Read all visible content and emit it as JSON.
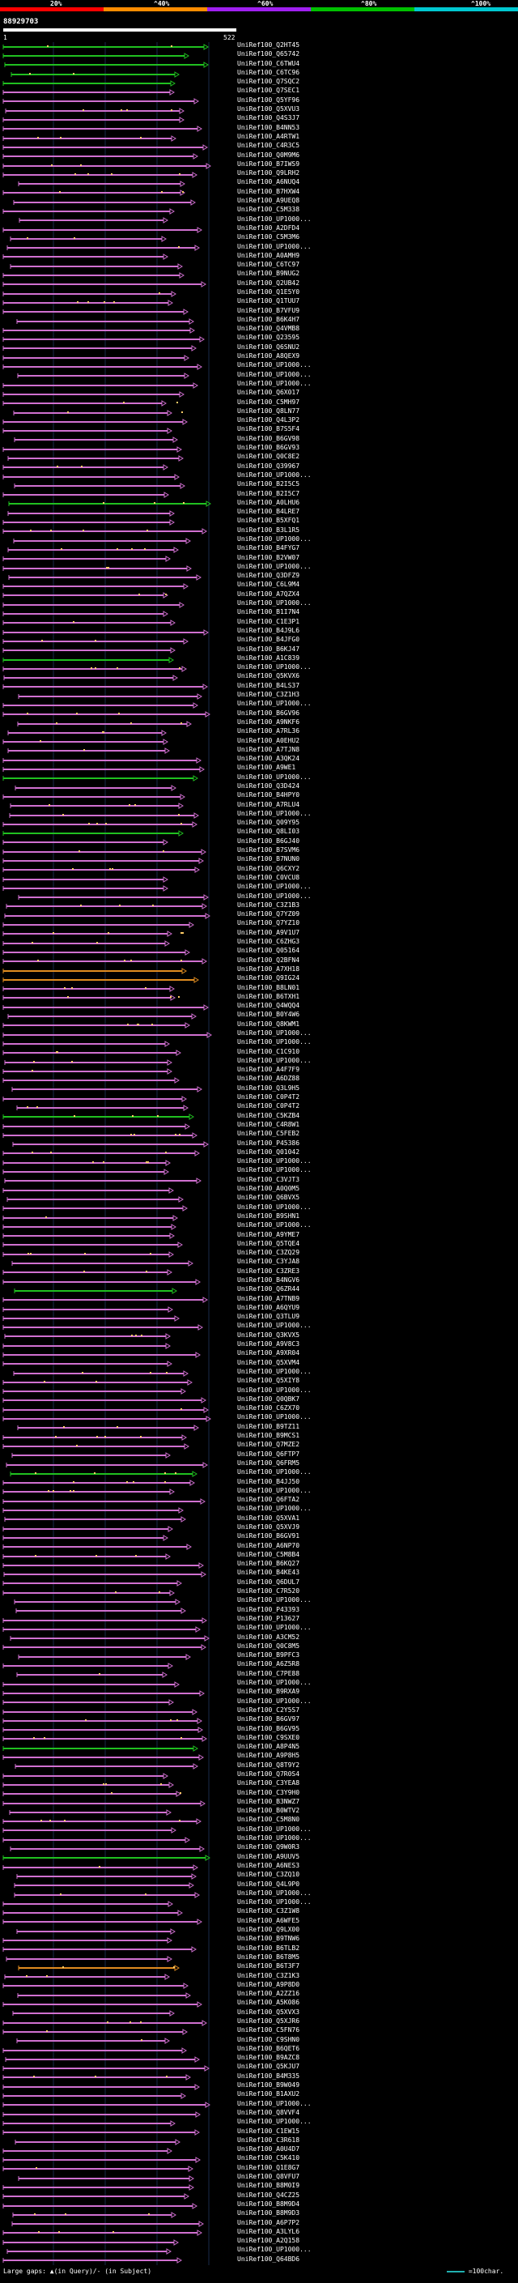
{
  "legend": {
    "labels": [
      "20%",
      "^40%",
      "^60%",
      "^80%",
      "^100%"
    ],
    "colors": [
      "#ff0000",
      "#ff8c00",
      "#a020f0",
      "#00c000",
      "#00c8d0"
    ]
  },
  "query": {
    "title": "88929703",
    "length_start": "1",
    "length_end": "522"
  },
  "colors": {
    "background": "#000000",
    "hit_magenta": "#d070d0",
    "hit_green": "#20c020",
    "hit_orange": "#e08c20",
    "gap_small": "#ffcc66"
  },
  "hits": [
    "UniRef100_Q2HT45",
    "UniRef100_Q65742",
    "UniRef100_C6TWU4",
    "UniRef100_C6TC96",
    "UniRef100_Q7SQC2",
    "UniRef100_Q7SEC1",
    "UniRef100_Q5YF96",
    "UniRef100_Q5XVU3",
    "UniRef100_Q4S3J7",
    "UniRef100_B4NN53",
    "UniRef100_A4RTW1",
    "UniRef100_C4R3C5",
    "UniRef100_Q0M9M6",
    "UniRef100_B7IWS9",
    "UniRef100_Q9LRH2",
    "UniRef100_A6NUQ4",
    "UniRef100_B7HXW4",
    "UniRef100_A9UEQ8",
    "UniRef100_C5M338",
    "UniRef100_UP1000...",
    "UniRef100_A2DFD4",
    "UniRef100_C5M3M6",
    "UniRef100_UP1000...",
    "UniRef100_A0AMH9",
    "UniRef100_C6TC97",
    "UniRef100_B9NUG2",
    "UniRef100_Q2UB42",
    "UniRef100_Q1E5Y0",
    "UniRef100_Q1TUU7",
    "UniRef100_B7VFU9",
    "UniRef100_B6K4H7",
    "UniRef100_Q4VMB8",
    "UniRef100_Q23595",
    "UniRef100_Q6SNU2",
    "UniRef100_A8QEX9",
    "UniRef100_UP1000...",
    "UniRef100_UP1000...",
    "UniRef100_UP1000...",
    "UniRef100_Q6X017",
    "UniRef100_C5MH97",
    "UniRef100_Q8LN77",
    "UniRef100_Q4L3P2",
    "UniRef100_B7S5F4",
    "UniRef100_B6GV98",
    "UniRef100_B6GV93",
    "UniRef100_Q0C8E2",
    "UniRef100_Q39967",
    "UniRef100_UP1000...",
    "UniRef100_B2I5C5",
    "UniRef100_B2I5C7",
    "UniRef100_A0LHU6",
    "UniRef100_B4LRE7",
    "UniRef100_B5XFQ1",
    "UniRef100_B3L1R5",
    "UniRef100_UP1000...",
    "UniRef100_B4FYG7",
    "UniRef100_B2VW07",
    "UniRef100_UP1000...",
    "UniRef100_Q3DFZ9",
    "UniRef100_C6L9M4",
    "UniRef100_A7QZX4",
    "UniRef100_UP1000...",
    "UniRef100_B1I7N4",
    "UniRef100_C1E3P1",
    "UniRef100_B4J9L6",
    "UniRef100_B4JFG0",
    "UniRef100_B6KJ47",
    "UniRef100_A1C839",
    "UniRef100_UP1000...",
    "UniRef100_Q5KVX6",
    "UniRef100_B4LS37",
    "UniRef100_C3Z1H3",
    "UniRef100_UP1000...",
    "UniRef100_B6GV96",
    "UniRef100_A9NKF6",
    "UniRef100_A7RL36",
    "UniRef100_A0EHU2",
    "UniRef100_A7TJN8",
    "UniRef100_A3QK24",
    "UniRef100_A9WE1",
    "UniRef100_UP1000...",
    "UniRef100_Q3D424",
    "UniRef100_B4HPY0",
    "UniRef100_A7RLU4",
    "UniRef100_UP1000...",
    "UniRef100_Q09Y95",
    "UniRef100_Q8LI03",
    "UniRef100_B6GJ40",
    "UniRef100_B7SVM6",
    "UniRef100_B7NUN0",
    "UniRef100_Q6CXY2",
    "UniRef100_C0VCU8",
    "UniRef100_UP1000...",
    "UniRef100_UP1000...",
    "UniRef100_C3Z1B3",
    "UniRef100_Q7YZ09",
    "UniRef100_Q7YZ10",
    "UniRef100_A9V1U7",
    "UniRef100_C6ZHG3",
    "UniRef100_Q05164",
    "UniRef100_Q2BFN4",
    "UniRef100_A7XH18",
    "UniRef100_Q9IG24",
    "UniRef100_B8LN01",
    "UniRef100_B6TXH1",
    "UniRef100_Q4WQQ4",
    "UniRef100_B0Y4W6",
    "UniRef100_Q8KWM1",
    "UniRef100_UP1000...",
    "UniRef100_UP1000...",
    "UniRef100_C1C910",
    "UniRef100_UP1000...",
    "UniRef100_A4F7F9",
    "UniRef100_A6DZ88",
    "UniRef100_Q3L9H5",
    "UniRef100_C0P4T2",
    "UniRef100_C0P4T2",
    "UniRef100_C5KZB4",
    "UniRef100_C4R8W1",
    "UniRef100_C5FEB2",
    "UniRef100_P45386",
    "UniRef100_Q01042",
    "UniRef100_UP1000...",
    "UniRef100_UP1000...",
    "UniRef100_C3VJT3",
    "UniRef100_A0Q0M5",
    "UniRef100_Q6BVX5",
    "UniRef100_UP1000...",
    "UniRef100_B9SHN1",
    "UniRef100_UP1000...",
    "UniRef100_A9YME7",
    "UniRef100_Q5TQE4",
    "UniRef100_C3ZQ29",
    "UniRef100_C3YJA8",
    "UniRef100_C3ZRE3",
    "UniRef100_B4NGV6",
    "UniRef100_Q6ZR44",
    "UniRef100_A7TNB9",
    "UniRef100_A6QYU9",
    "UniRef100_Q3TLU9",
    "UniRef100_UP1000...",
    "UniRef100_Q3KVX5",
    "UniRef100_A9V8C3",
    "UniRef100_A9XR04",
    "UniRef100_Q5XVM4",
    "UniRef100_UP1000...",
    "UniRef100_Q5XIY8",
    "UniRef100_UP1000...",
    "UniRef100_Q0QBK7",
    "UniRef100_C6ZX70",
    "UniRef100_UP1000...",
    "UniRef100_B9TZ11",
    "UniRef100_B9MCS1",
    "UniRef100_Q7MZE2",
    "UniRef100_Q6FTP7",
    "UniRef100_Q6FRM5",
    "UniRef100_UP1000...",
    "UniRef100_B4JJ50",
    "UniRef100_UP1000...",
    "UniRef100_Q6FTA2",
    "UniRef100_UP1000...",
    "UniRef100_Q5XVA1",
    "UniRef100_Q5XVJ9",
    "UniRef100_B6GV91",
    "UniRef100_A6NP70",
    "UniRef100_C5M8B4",
    "UniRef100_B6KQ27",
    "UniRef100_B4KE43",
    "UniRef100_Q6DUL7",
    "UniRef100_C7R520",
    "UniRef100_UP1000...",
    "UniRef100_P43393",
    "UniRef100_P13627",
    "UniRef100_UP1000...",
    "UniRef100_A3CM52",
    "UniRef100_Q0C8M5",
    "UniRef100_B9PFC3",
    "UniRef100_A6Z5R8",
    "UniRef100_C7PE88",
    "UniRef100_UP1000...",
    "UniRef100_B9RXA9",
    "UniRef100_UP1000...",
    "UniRef100_C2Y5S7",
    "UniRef100_B6GV97",
    "UniRef100_B6GV95",
    "UniRef100_C9SXE0",
    "UniRef100_A8P4N5",
    "UniRef100_A9P8H5",
    "UniRef100_Q8T9Y2",
    "UniRef100_Q7R0S4",
    "UniRef100_C3YEA8",
    "UniRef100_C3Y9H0",
    "UniRef100_B3NWZ7",
    "UniRef100_B0WTV2",
    "UniRef100_C5M8N0",
    "UniRef100_UP1000...",
    "UniRef100_UP1000...",
    "UniRef100_Q9W0R3",
    "UniRef100_A9UUV5",
    "UniRef100_A6NES3",
    "UniRef100_C3ZQ10",
    "UniRef100_Q4L9P0",
    "UniRef100_UP1000...",
    "UniRef100_UP1000...",
    "UniRef100_C3Z1W8",
    "UniRef100_A6WFE5",
    "UniRef100_Q9LX00",
    "UniRef100_B9TNW6",
    "UniRef100_B6TLB2",
    "UniRef100_B6T8M5",
    "UniRef100_B6T3F7",
    "UniRef100_C3Z1K3",
    "UniRef100_A9P8D0",
    "UniRef100_A2ZZ16",
    "UniRef100_A5K086",
    "UniRef100_Q5XVX3",
    "UniRef100_Q5XJR6",
    "UniRef100_C5FN76",
    "UniRef100_C9SHN0",
    "UniRef100_B6QET6",
    "UniRef100_B9AZC8",
    "UniRef100_Q5KJU7",
    "UniRef100_B4M335",
    "UniRef100_B9W049",
    "UniRef100_B1AXU2",
    "UniRef100_UP1000...",
    "UniRef100_Q8VVF4",
    "UniRef100_UP1000...",
    "UniRef100_C1EW15",
    "UniRef100_C3R618",
    "UniRef100_A0U4D7",
    "UniRef100_C5K410",
    "UniRef100_Q1E8G7",
    "UniRef100_Q8VFU7",
    "UniRef100_B8M0I9",
    "UniRef100_Q4CZ25",
    "UniRef100_B8M9D4",
    "UniRef100_B8M9D3",
    "UniRef100_A6P7P2",
    "UniRef100_A3LYL6",
    "UniRef100_A2Q158",
    "UniRef100_UP1000...",
    "UniRef100_Q64BD6"
  ],
  "footer": {
    "left_text": "Large gaps: ▲(in Query)/- (in Subject)",
    "right_text": "=100char."
  }
}
